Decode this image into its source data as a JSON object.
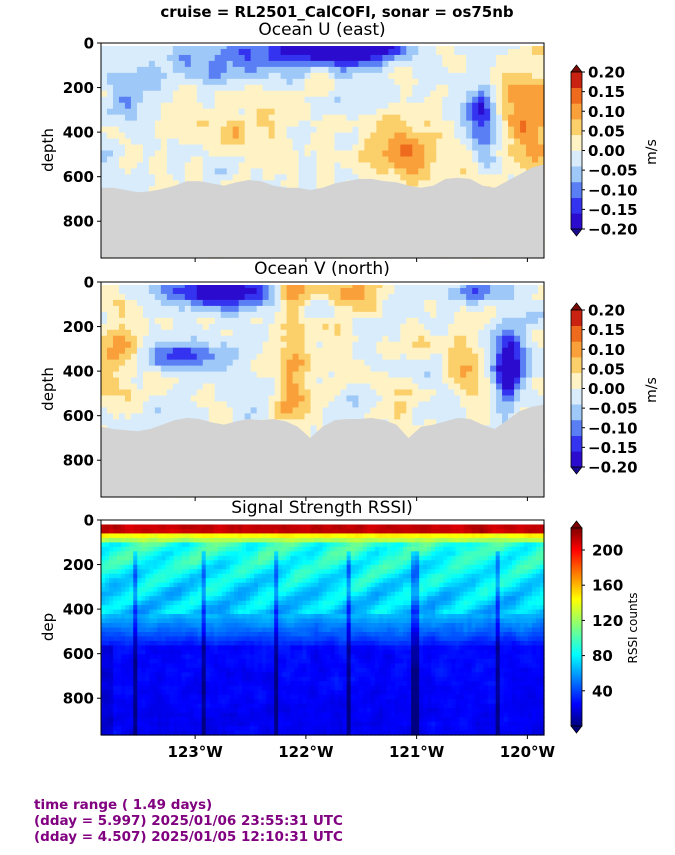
{
  "suptitle": "cruise = RL2501_CalCOFI,  sonar = os75nb",
  "footer": {
    "line1": "time range ( 1.49 days)",
    "line2": "(dday = 5.997) 2025/01/06 23:55:31 UTC",
    "line3": "(dday = 4.507) 2025/01/05 12:10:31 UTC"
  },
  "colors": {
    "no_data": "#d3d3d3",
    "footer_text": "#800080"
  },
  "chart_data": [
    {
      "type": "heatmap",
      "title": "Ocean U (east)",
      "ylabel": "depth",
      "xlabel": "",
      "xlim": [
        -123.85,
        -119.85
      ],
      "ylim": [
        965,
        0
      ],
      "yticks": [
        0,
        200,
        400,
        600,
        800
      ],
      "ytick_labels": [
        "0",
        "200",
        "400",
        "600",
        "800"
      ],
      "xticks": [
        -123,
        -122,
        -121,
        -120
      ],
      "xtick_labels": [],
      "colorbar": {
        "label": "m/s",
        "range": [
          -0.2,
          0.2
        ],
        "ticks": [
          "0.20",
          "0.15",
          "0.10",
          "0.05",
          "0.00",
          "−0.05",
          "−0.10",
          "−0.15",
          "−0.20"
        ],
        "levels": [
          "#2b0ccf",
          "#3333f0",
          "#5a7ff5",
          "#9ec8f7",
          "#d8ecfb",
          "#fff3c6",
          "#fbcf6a",
          "#f9a03a",
          "#ee6a1c",
          "#c92210"
        ]
      },
      "bottom_of_data_depth": [
        650,
        650,
        660,
        670,
        665,
        655,
        640,
        620,
        620,
        630,
        640,
        625,
        615,
        620,
        640,
        650,
        650,
        660,
        650,
        630,
        620,
        610,
        610,
        620,
        625,
        640,
        650,
        640,
        610,
        605,
        610,
        640,
        650,
        620,
        590,
        560,
        545
      ]
    },
    {
      "type": "heatmap",
      "title": "Ocean V (north)",
      "ylabel": "depth",
      "xlabel": "",
      "xlim": [
        -123.85,
        -119.85
      ],
      "ylim": [
        965,
        0
      ],
      "yticks": [
        0,
        200,
        400,
        600,
        800
      ],
      "ytick_labels": [
        "0",
        "200",
        "400",
        "600",
        "800"
      ],
      "xticks": [
        -123,
        -122,
        -121,
        -120
      ],
      "xtick_labels": [],
      "colorbar": {
        "label": "m/s",
        "range": [
          -0.2,
          0.2
        ],
        "ticks": [
          "0.20",
          "0.15",
          "0.10",
          "0.05",
          "0.00",
          "−0.05",
          "−0.10",
          "−0.15",
          "−0.20"
        ],
        "levels": [
          "#2b0ccf",
          "#3333f0",
          "#5a7ff5",
          "#9ec8f7",
          "#d8ecfb",
          "#fff3c6",
          "#fbcf6a",
          "#f9a03a",
          "#ee6a1c",
          "#c92210"
        ]
      },
      "bottom_of_data_depth": [
        650,
        660,
        665,
        670,
        660,
        640,
        620,
        610,
        615,
        630,
        640,
        625,
        615,
        620,
        615,
        625,
        650,
        700,
        650,
        620,
        615,
        615,
        610,
        620,
        640,
        700,
        650,
        640,
        625,
        610,
        615,
        640,
        660,
        620,
        580,
        560,
        550
      ]
    },
    {
      "type": "heatmap",
      "title": "Signal Strength RSSI)",
      "ylabel": "dep",
      "xlabel": "",
      "xlim": [
        -123.85,
        -119.85
      ],
      "ylim": [
        965,
        0
      ],
      "yticks": [
        0,
        200,
        400,
        600,
        800
      ],
      "ytick_labels": [
        "0",
        "200",
        "400",
        "600",
        "800"
      ],
      "xticks": [
        -123,
        -122,
        -121,
        -120
      ],
      "xtick_labels": [
        "123°W",
        "122°W",
        "121°W",
        "120°W"
      ],
      "colorbar": {
        "label": "RSSI counts",
        "range": [
          0,
          225
        ],
        "ticks": [
          "200",
          "160",
          "120",
          "80",
          "40"
        ],
        "tick_values": [
          200,
          160,
          120,
          80,
          40
        ],
        "colormap": "jet"
      }
    }
  ]
}
